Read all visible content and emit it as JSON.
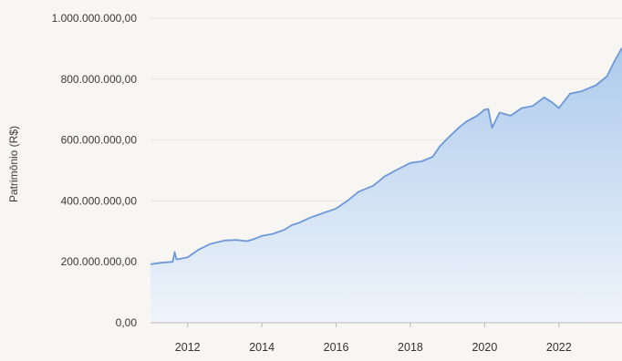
{
  "chart_data": {
    "type": "area",
    "title": "",
    "xlabel": "",
    "ylabel": "Patrimônio (R$)",
    "ylim": [
      0,
      1000000000
    ],
    "xlim": [
      2011.0,
      2023.7
    ],
    "y_ticks": [
      {
        "value": 0,
        "label": "0,00"
      },
      {
        "value": 200000000,
        "label": "200.000.000,00"
      },
      {
        "value": 400000000,
        "label": "400.000.000,00"
      },
      {
        "value": 600000000,
        "label": "600.000.000,00"
      },
      {
        "value": 800000000,
        "label": "800.000.000,00"
      },
      {
        "value": 1000000000,
        "label": "1.000.000.000,00"
      }
    ],
    "x_ticks": [
      {
        "value": 2012,
        "label": "2012"
      },
      {
        "value": 2014,
        "label": "2014"
      },
      {
        "value": 2016,
        "label": "2016"
      },
      {
        "value": 2018,
        "label": "2018"
      },
      {
        "value": 2020,
        "label": "2020"
      },
      {
        "value": 2022,
        "label": "2022"
      }
    ],
    "grid": true,
    "colors": {
      "line": "#6f98d8",
      "fill_top": "#a9c8ec",
      "fill_bottom": "#eef4fb"
    },
    "series": [
      {
        "x": [
          2011.0,
          2011.3,
          2011.6,
          2011.65,
          2011.7,
          2011.8,
          2012.0,
          2012.3,
          2012.6,
          2013.0,
          2013.3,
          2013.6,
          2013.8,
          2014.0,
          2014.3,
          2014.6,
          2014.8,
          2015.0,
          2015.3,
          2015.6,
          2016.0,
          2016.3,
          2016.6,
          2017.0,
          2017.3,
          2017.6,
          2018.0,
          2018.3,
          2018.6,
          2018.8,
          2019.0,
          2019.3,
          2019.5,
          2019.8,
          2020.0,
          2020.1,
          2020.2,
          2020.4,
          2020.7,
          2021.0,
          2021.3,
          2021.6,
          2021.8,
          2022.0,
          2022.3,
          2022.6,
          2022.8,
          2023.0,
          2023.3,
          2023.5,
          2023.7
        ],
        "y": [
          192000000,
          197000000,
          200000000,
          232000000,
          208000000,
          210000000,
          215000000,
          240000000,
          258000000,
          270000000,
          272000000,
          268000000,
          275000000,
          285000000,
          292000000,
          305000000,
          320000000,
          328000000,
          345000000,
          358000000,
          375000000,
          400000000,
          430000000,
          450000000,
          480000000,
          500000000,
          525000000,
          530000000,
          545000000,
          580000000,
          605000000,
          640000000,
          660000000,
          680000000,
          700000000,
          702000000,
          640000000,
          690000000,
          680000000,
          705000000,
          712000000,
          740000000,
          725000000,
          705000000,
          752000000,
          760000000,
          770000000,
          780000000,
          810000000,
          860000000,
          903000000
        ]
      }
    ]
  }
}
